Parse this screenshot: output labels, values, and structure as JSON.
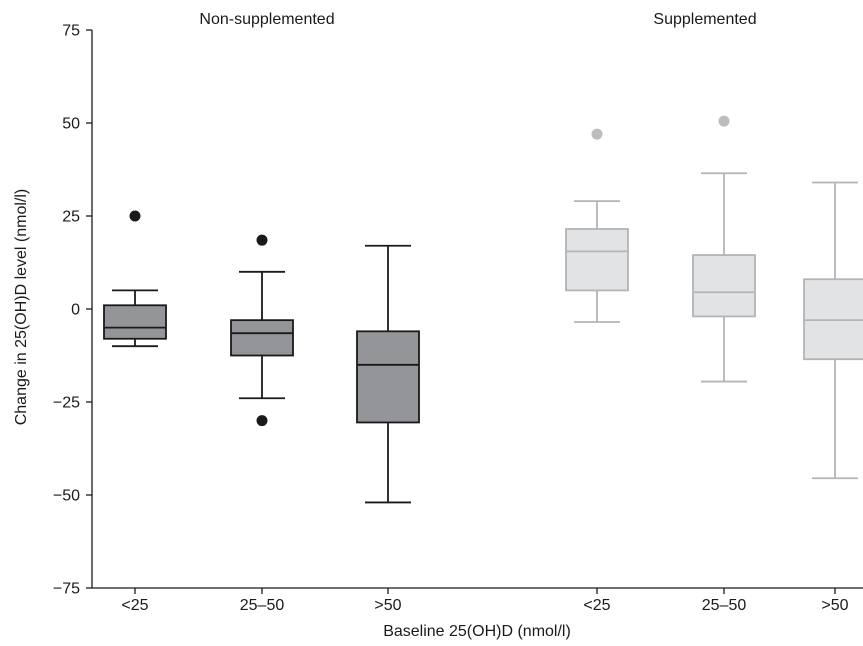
{
  "chart_data": {
    "type": "box",
    "ylabel": "Change in 25(OH)D level (nmol/l)",
    "xlabel": "Baseline 25(OH)D (nmol/l)",
    "ylim": [
      -75,
      75
    ],
    "yticks": [
      -75,
      -50,
      -25,
      0,
      25,
      50,
      75
    ],
    "ytick_labels": [
      "−75",
      "−50",
      "−25",
      "0",
      "25",
      "50",
      "75"
    ],
    "grid": false,
    "groups": [
      {
        "title": "Non-supplemented",
        "fill": "#939598",
        "stroke": "#1a1a1a",
        "boxes": [
          {
            "category": "<25",
            "whisker_low": -10,
            "q1": -8,
            "median": -5,
            "q3": 1,
            "whisker_high": 5,
            "outliers": [
              25
            ]
          },
          {
            "category": "25–50",
            "whisker_low": -24,
            "q1": -12.5,
            "median": -6.5,
            "q3": -3,
            "whisker_high": 10,
            "outliers": [
              18.5,
              -30
            ]
          },
          {
            "category": ">50",
            "whisker_low": -52,
            "q1": -30.5,
            "median": -15,
            "q3": -6,
            "whisker_high": 17,
            "outliers": []
          }
        ]
      },
      {
        "title": "Supplemented",
        "fill": "#e2e3e4",
        "stroke": "#b3b4b6",
        "boxes": [
          {
            "category": "<25",
            "whisker_low": -3.5,
            "q1": 5,
            "median": 15.5,
            "q3": 21.5,
            "whisker_high": 29,
            "outliers": [
              47
            ]
          },
          {
            "category": "25–50",
            "whisker_low": -19.5,
            "q1": -2,
            "median": 4.5,
            "q3": 14.5,
            "whisker_high": 36.5,
            "outliers": [
              50.5
            ]
          },
          {
            "category": ">50",
            "whisker_low": -45.5,
            "q1": -13.5,
            "median": -3,
            "q3": 8,
            "whisker_high": 34,
            "outliers": []
          }
        ]
      }
    ]
  }
}
